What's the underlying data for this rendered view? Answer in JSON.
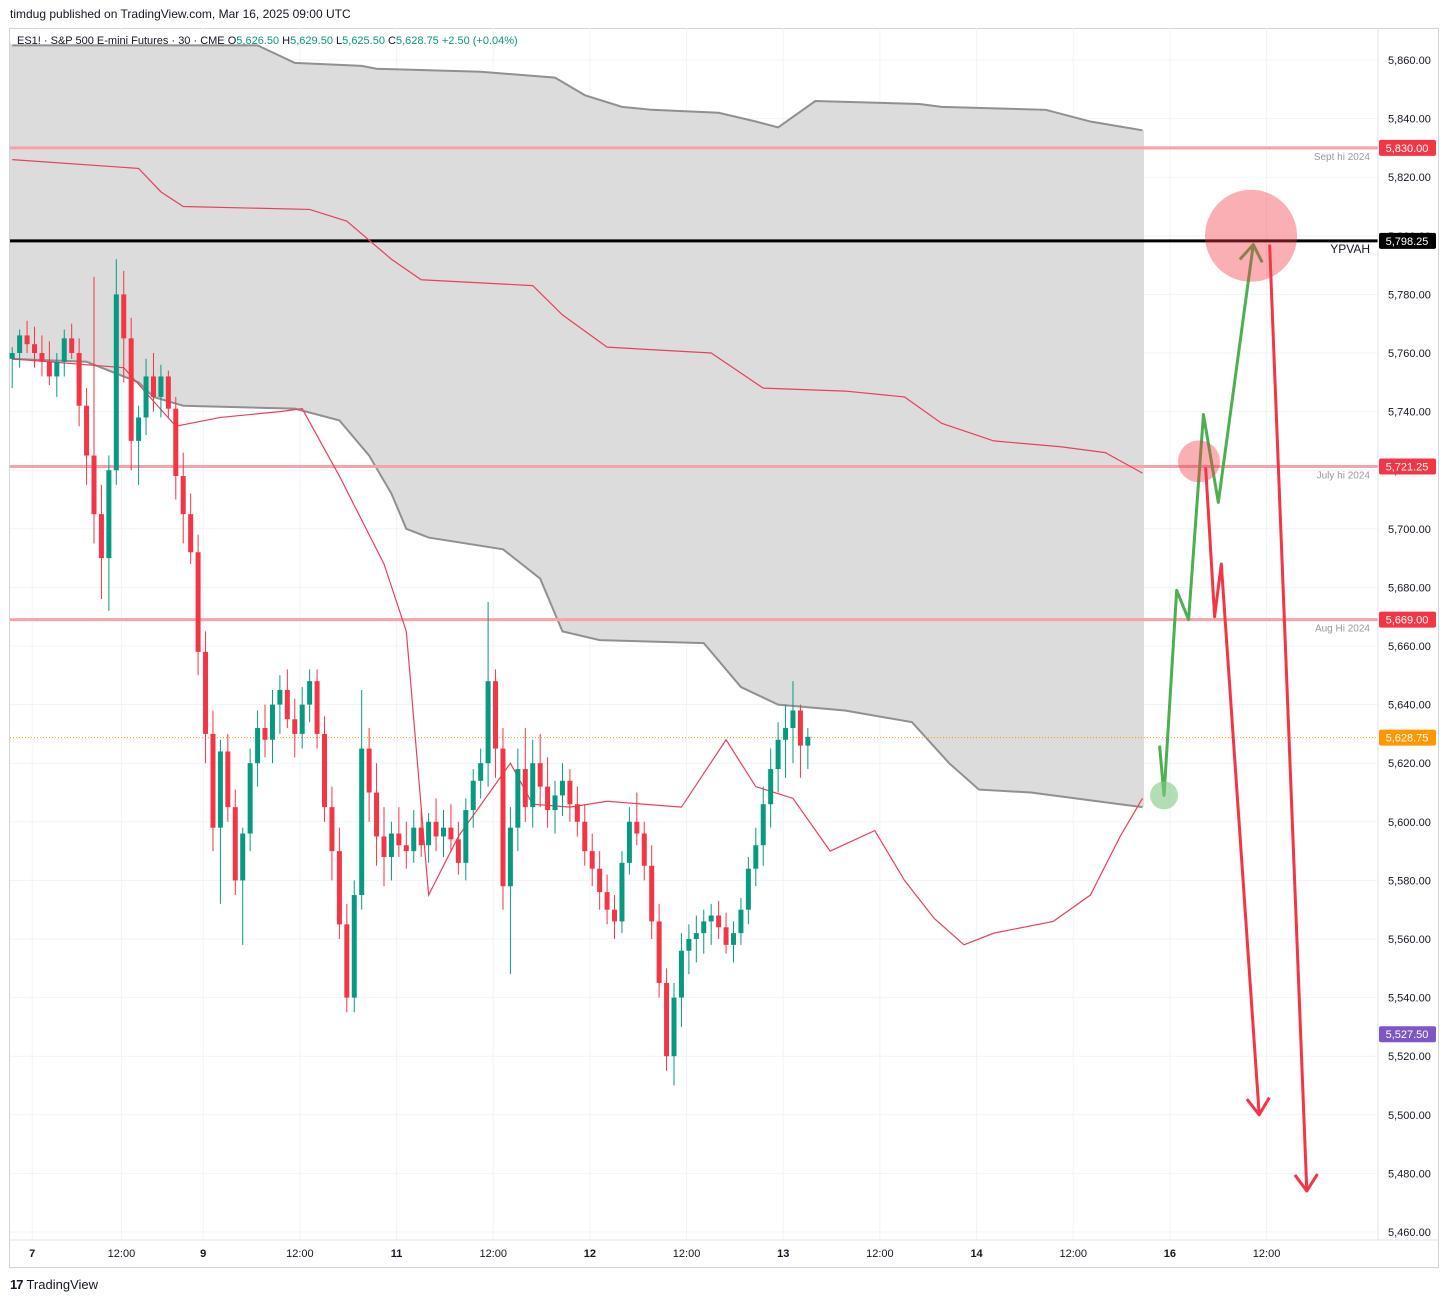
{
  "header": {
    "published": "timdug published on TradingView.com, Mar 16, 2025 09:00 UTC"
  },
  "symbol_bar": {
    "title": "ES1! · S&P 500 E-mini Futures · 30 · CME",
    "open_label": "O",
    "open": "5,626.50",
    "high_label": "H",
    "high": "5,629.50",
    "low_label": "L",
    "low": "5,625.50",
    "close_label": "C",
    "close": "5,628.75",
    "change": "+2.50 (+0.04%)"
  },
  "footer": {
    "brand": "TradingView"
  },
  "colors": {
    "up": "#089981",
    "down": "#f23645",
    "level_line": "#f7a1a8",
    "ypvah_line": "#000000",
    "band_fill": "#dcdcdc",
    "band_edge": "#909090",
    "vwap": "#e8415a",
    "forecast_up": "#4caf50",
    "forecast_down": "#f23645",
    "last_price": "#ff9800",
    "low_tag": "#7e57c2"
  },
  "chart_data": {
    "type": "candlestick",
    "ylim": [
      5455,
      5870
    ],
    "y_ticks": [
      "5,860.00",
      "5,840.00",
      "5,820.00",
      "5,800.00",
      "5,780.00",
      "5,760.00",
      "5,740.00",
      "5,720.00",
      "5,700.00",
      "5,680.00",
      "5,660.00",
      "5,640.00",
      "5,620.00",
      "5,600.00",
      "5,580.00",
      "5,560.00",
      "5,540.00",
      "5,520.00",
      "5,500.00",
      "5,480.00",
      "5,460.00"
    ],
    "x_ticks": [
      "7",
      "12:00",
      "9",
      "12:00",
      "11",
      "12:00",
      "12",
      "12:00",
      "13",
      "12:00",
      "14",
      "12:00",
      "16",
      "12:00"
    ],
    "x_tick_index": [
      0,
      12,
      23,
      36,
      49,
      62,
      75,
      88,
      101,
      114,
      127,
      140,
      153,
      166
    ],
    "levels": [
      {
        "price": 5830.0,
        "tag": "5,830.00",
        "label": "Sept hi 2024",
        "style": "red"
      },
      {
        "price": 5798.25,
        "tag": "5,798.25",
        "label": "YPVAH",
        "style": "black"
      },
      {
        "price": 5721.25,
        "tag": "5,721.25",
        "label": "July hi 2024",
        "style": "red"
      },
      {
        "price": 5669.0,
        "tag": "5,669.00",
        "label": "Aug Hi 2024",
        "style": "red"
      }
    ],
    "last_price": {
      "price": 5628.75,
      "tag": "5,628.75"
    },
    "low_tag": {
      "price": 5527.5,
      "tag": "5,527.50"
    },
    "band_upper": [
      [
        0,
        5865
      ],
      [
        33,
        5865
      ],
      [
        38,
        5859
      ],
      [
        47,
        5858
      ],
      [
        49,
        5857
      ],
      [
        63,
        5856
      ],
      [
        73,
        5854
      ],
      [
        77,
        5848
      ],
      [
        82,
        5844
      ],
      [
        86,
        5843
      ],
      [
        95,
        5842
      ],
      [
        100,
        5839
      ],
      [
        103,
        5837
      ],
      [
        108,
        5846
      ],
      [
        122,
        5845
      ],
      [
        125,
        5844
      ],
      [
        139,
        5843
      ],
      [
        145,
        5839
      ],
      [
        152,
        5836
      ]
    ],
    "band_lower": [
      [
        0,
        5758
      ],
      [
        10,
        5757
      ],
      [
        17,
        5750
      ],
      [
        19,
        5745
      ],
      [
        23,
        5742
      ],
      [
        38,
        5741
      ],
      [
        44,
        5737
      ],
      [
        48,
        5725
      ],
      [
        51,
        5712
      ],
      [
        53,
        5700
      ],
      [
        56,
        5697
      ],
      [
        66,
        5693
      ],
      [
        71,
        5683
      ],
      [
        74,
        5665
      ],
      [
        79,
        5662
      ],
      [
        93,
        5661
      ],
      [
        98,
        5646
      ],
      [
        103,
        5640
      ],
      [
        112,
        5638
      ],
      [
        121,
        5634
      ],
      [
        126,
        5620
      ],
      [
        130,
        5611
      ],
      [
        137,
        5610
      ],
      [
        149,
        5606
      ],
      [
        152,
        5605
      ]
    ],
    "vwap_upper": [
      [
        0,
        5826
      ],
      [
        17,
        5823
      ],
      [
        20,
        5815
      ],
      [
        23,
        5810
      ],
      [
        40,
        5809
      ],
      [
        45,
        5805
      ],
      [
        51,
        5792
      ],
      [
        55,
        5785
      ],
      [
        70,
        5783
      ],
      [
        74,
        5773
      ],
      [
        80,
        5762
      ],
      [
        94,
        5760
      ],
      [
        101,
        5748
      ],
      [
        112,
        5747
      ],
      [
        120,
        5745
      ],
      [
        125,
        5736
      ],
      [
        132,
        5730
      ],
      [
        141,
        5728
      ],
      [
        147,
        5726
      ],
      [
        152,
        5719
      ]
    ],
    "vwap_lower": [
      [
        0,
        5758
      ],
      [
        15,
        5755
      ],
      [
        22,
        5735
      ],
      [
        28,
        5738
      ],
      [
        36,
        5740
      ],
      [
        39,
        5741
      ],
      [
        44,
        5718
      ],
      [
        50,
        5688
      ],
      [
        53,
        5665
      ],
      [
        56,
        5575
      ],
      [
        60,
        5595
      ],
      [
        67,
        5620
      ],
      [
        70,
        5606
      ],
      [
        75,
        5605
      ],
      [
        80,
        5607
      ],
      [
        90,
        5605
      ],
      [
        96,
        5628
      ],
      [
        100,
        5612
      ],
      [
        105,
        5608
      ],
      [
        110,
        5590
      ],
      [
        116,
        5597
      ],
      [
        120,
        5580
      ],
      [
        124,
        5567
      ],
      [
        128,
        5558
      ],
      [
        132,
        5562
      ],
      [
        140,
        5566
      ],
      [
        145,
        5575
      ],
      [
        149,
        5595
      ],
      [
        152,
        5608
      ]
    ],
    "forecast_paths": [
      {
        "color": "green",
        "arrow": true,
        "points": [
          [
            154.3,
            5626
          ],
          [
            154.9,
            5609
          ],
          [
            156.6,
            5679
          ],
          [
            158.2,
            5669
          ],
          [
            160.2,
            5739
          ],
          [
            162.2,
            5709
          ],
          [
            166.9,
            5797
          ]
        ]
      },
      {
        "color": "red",
        "arrow": true,
        "points": [
          [
            160.5,
            5721
          ],
          [
            161.7,
            5670
          ],
          [
            162.6,
            5688
          ],
          [
            167.7,
            5500
          ]
        ]
      },
      {
        "color": "red",
        "arrow": true,
        "points": [
          [
            169.1,
            5797
          ],
          [
            174.1,
            5474
          ]
        ]
      }
    ],
    "markers": [
      {
        "x": 154.9,
        "price": 5609,
        "radius": 14,
        "color": "green"
      },
      {
        "x": 159.6,
        "price": 5723,
        "radius": 21,
        "color": "red"
      },
      {
        "x": 166.6,
        "price": 5800,
        "radius": 46,
        "color": "red"
      }
    ],
    "candles": [
      [
        5758,
        5762,
        5748,
        5760
      ],
      [
        5760,
        5768,
        5755,
        5766
      ],
      [
        5766,
        5771,
        5760,
        5763
      ],
      [
        5763,
        5769,
        5755,
        5760
      ],
      [
        5760,
        5766,
        5752,
        5757
      ],
      [
        5757,
        5764,
        5749,
        5752
      ],
      [
        5752,
        5760,
        5745,
        5757
      ],
      [
        5757,
        5768,
        5752,
        5765
      ],
      [
        5765,
        5770,
        5758,
        5760
      ],
      [
        5760,
        5765,
        5735,
        5742
      ],
      [
        5742,
        5748,
        5715,
        5725
      ],
      [
        5725,
        5786,
        5695,
        5705
      ],
      [
        5705,
        5715,
        5676,
        5690
      ],
      [
        5690,
        5725,
        5672,
        5720
      ],
      [
        5720,
        5792,
        5715,
        5780
      ],
      [
        5780,
        5788,
        5750,
        5765
      ],
      [
        5765,
        5772,
        5720,
        5730
      ],
      [
        5730,
        5742,
        5715,
        5738
      ],
      [
        5738,
        5758,
        5732,
        5752
      ],
      [
        5752,
        5760,
        5740,
        5745
      ],
      [
        5745,
        5756,
        5738,
        5752
      ],
      [
        5752,
        5754,
        5738,
        5741
      ],
      [
        5741,
        5745,
        5710,
        5718
      ],
      [
        5718,
        5726,
        5695,
        5705
      ],
      [
        5705,
        5712,
        5688,
        5692
      ],
      [
        5692,
        5698,
        5650,
        5658
      ],
      [
        5658,
        5665,
        5620,
        5630
      ],
      [
        5630,
        5638,
        5590,
        5598
      ],
      [
        5598,
        5628,
        5572,
        5624
      ],
      [
        5624,
        5630,
        5600,
        5605
      ],
      [
        5605,
        5611,
        5575,
        5580
      ],
      [
        5580,
        5598,
        5558,
        5596
      ],
      [
        5596,
        5625,
        5590,
        5620
      ],
      [
        5620,
        5638,
        5612,
        5632
      ],
      [
        5632,
        5640,
        5622,
        5628
      ],
      [
        5628,
        5645,
        5620,
        5640
      ],
      [
        5640,
        5650,
        5630,
        5645
      ],
      [
        5645,
        5652,
        5632,
        5635
      ],
      [
        5635,
        5642,
        5622,
        5630
      ],
      [
        5630,
        5646,
        5625,
        5640
      ],
      [
        5640,
        5652,
        5634,
        5648
      ],
      [
        5648,
        5652,
        5625,
        5630
      ],
      [
        5630,
        5636,
        5600,
        5605
      ],
      [
        5605,
        5612,
        5580,
        5590
      ],
      [
        5590,
        5598,
        5560,
        5565
      ],
      [
        5565,
        5572,
        5535,
        5540
      ],
      [
        5540,
        5580,
        5535,
        5575
      ],
      [
        5575,
        5645,
        5570,
        5625
      ],
      [
        5625,
        5632,
        5600,
        5610
      ],
      [
        5610,
        5620,
        5585,
        5595
      ],
      [
        5595,
        5605,
        5578,
        5588
      ],
      [
        5588,
        5600,
        5580,
        5596
      ],
      [
        5596,
        5605,
        5588,
        5592
      ],
      [
        5592,
        5600,
        5584,
        5590
      ],
      [
        5590,
        5604,
        5586,
        5598
      ],
      [
        5598,
        5604,
        5588,
        5592
      ],
      [
        5592,
        5603,
        5586,
        5600
      ],
      [
        5600,
        5608,
        5590,
        5595
      ],
      [
        5595,
        5604,
        5588,
        5598
      ],
      [
        5598,
        5606,
        5590,
        5594
      ],
      [
        5594,
        5600,
        5582,
        5586
      ],
      [
        5586,
        5608,
        5580,
        5604
      ],
      [
        5604,
        5618,
        5598,
        5614
      ],
      [
        5614,
        5625,
        5608,
        5620
      ],
      [
        5620,
        5675,
        5612,
        5648
      ],
      [
        5648,
        5652,
        5615,
        5625
      ],
      [
        5625,
        5632,
        5570,
        5578
      ],
      [
        5578,
        5605,
        5548,
        5598
      ],
      [
        5598,
        5625,
        5590,
        5618
      ],
      [
        5618,
        5632,
        5600,
        5605
      ],
      [
        5605,
        5628,
        5598,
        5620
      ],
      [
        5620,
        5630,
        5605,
        5612
      ],
      [
        5612,
        5622,
        5598,
        5604
      ],
      [
        5604,
        5614,
        5596,
        5609
      ],
      [
        5609,
        5620,
        5602,
        5614
      ],
      [
        5614,
        5618,
        5600,
        5606
      ],
      [
        5606,
        5612,
        5595,
        5600
      ],
      [
        5600,
        5606,
        5585,
        5590
      ],
      [
        5590,
        5596,
        5578,
        5584
      ],
      [
        5584,
        5590,
        5570,
        5576
      ],
      [
        5576,
        5582,
        5565,
        5570
      ],
      [
        5570,
        5575,
        5560,
        5566
      ],
      [
        5566,
        5590,
        5562,
        5586
      ],
      [
        5586,
        5605,
        5582,
        5600
      ],
      [
        5600,
        5610,
        5592,
        5596
      ],
      [
        5596,
        5600,
        5580,
        5585
      ],
      [
        5585,
        5592,
        5560,
        5566
      ],
      [
        5566,
        5572,
        5540,
        5545
      ],
      [
        5545,
        5550,
        5515,
        5520
      ],
      [
        5520,
        5545,
        5510,
        5540
      ],
      [
        5540,
        5562,
        5530,
        5556
      ],
      [
        5556,
        5565,
        5548,
        5560
      ],
      [
        5560,
        5568,
        5552,
        5562
      ],
      [
        5562,
        5570,
        5555,
        5566
      ],
      [
        5566,
        5572,
        5558,
        5568
      ],
      [
        5568,
        5573,
        5560,
        5564
      ],
      [
        5564,
        5569,
        5555,
        5558
      ],
      [
        5558,
        5566,
        5552,
        5562
      ],
      [
        5562,
        5574,
        5558,
        5570
      ],
      [
        5570,
        5588,
        5565,
        5584
      ],
      [
        5584,
        5598,
        5578,
        5592
      ],
      [
        5592,
        5612,
        5585,
        5606
      ],
      [
        5606,
        5625,
        5598,
        5618
      ],
      [
        5618,
        5634,
        5610,
        5628
      ],
      [
        5628,
        5640,
        5615,
        5632
      ],
      [
        5632,
        5648,
        5620,
        5638
      ],
      [
        5638,
        5640,
        5615,
        5626
      ],
      [
        5626,
        5632,
        5618,
        5629
      ]
    ]
  }
}
